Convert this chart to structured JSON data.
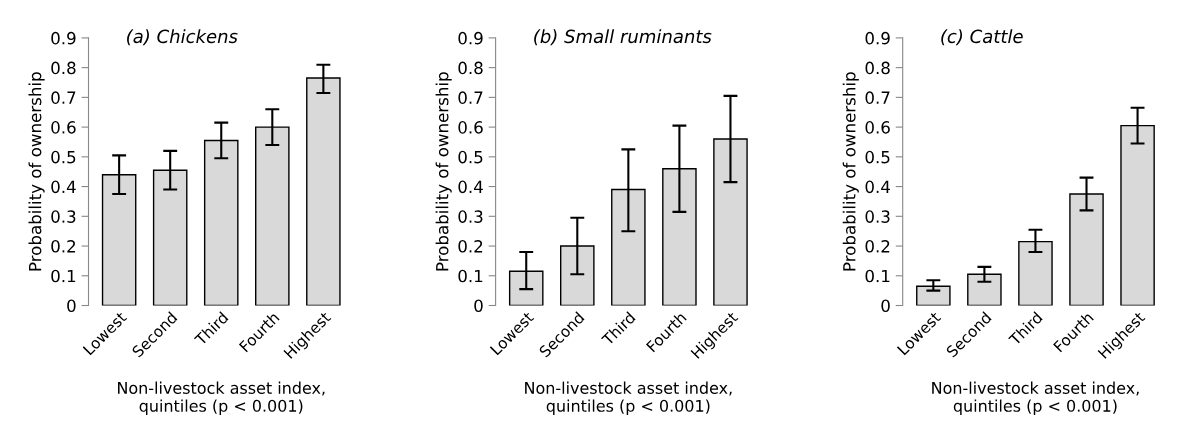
{
  "chart_data": [
    {
      "type": "bar",
      "title": "(a) Chickens",
      "xlabel": "Non-livestock asset index,\nquintiles (p < 0.001)",
      "ylabel": "Probability of ownership",
      "categories": [
        "Lowest",
        "Second",
        "Third",
        "Fourth",
        "Highest"
      ],
      "values": [
        0.44,
        0.455,
        0.555,
        0.6,
        0.765
      ],
      "errors": [
        [
          0.375,
          0.505
        ],
        [
          0.39,
          0.52
        ],
        [
          0.495,
          0.615
        ],
        [
          0.54,
          0.66
        ],
        [
          0.715,
          0.81
        ]
      ],
      "color": "#d9d9d9",
      "ylim": [
        0,
        0.9
      ],
      "yticks": [
        0,
        0.1,
        0.2,
        0.3,
        0.4,
        0.5,
        0.6,
        0.7,
        0.8,
        0.9
      ],
      "grid": false,
      "legend": false
    },
    {
      "type": "bar",
      "title": "(b) Small ruminants",
      "xlabel": "Non-livestock asset index,\nquintiles (p < 0.001)",
      "ylabel": "Probability of ownership",
      "categories": [
        "Lowest",
        "Second",
        "Third",
        "Fourth",
        "Highest"
      ],
      "values": [
        0.115,
        0.2,
        0.39,
        0.46,
        0.56
      ],
      "errors": [
        [
          0.055,
          0.18
        ],
        [
          0.105,
          0.295
        ],
        [
          0.25,
          0.525
        ],
        [
          0.315,
          0.605
        ],
        [
          0.415,
          0.705
        ]
      ],
      "color": "#d9d9d9",
      "ylim": [
        0,
        0.9
      ],
      "yticks": [
        0,
        0.1,
        0.2,
        0.3,
        0.4,
        0.5,
        0.6,
        0.7,
        0.8,
        0.9
      ],
      "grid": false,
      "legend": false
    },
    {
      "type": "bar",
      "title": "(c) Cattle",
      "xlabel": "Non-livestock asset index,\nquintiles (p < 0.001)",
      "ylabel": "Probability of ownership",
      "categories": [
        "Lowest",
        "Second",
        "Third",
        "Fourth",
        "Highest"
      ],
      "values": [
        0.065,
        0.105,
        0.215,
        0.375,
        0.605
      ],
      "errors": [
        [
          0.05,
          0.085
        ],
        [
          0.08,
          0.13
        ],
        [
          0.18,
          0.255
        ],
        [
          0.32,
          0.43
        ],
        [
          0.545,
          0.665
        ]
      ],
      "color": "#d9d9d9",
      "ylim": [
        0,
        0.9
      ],
      "yticks": [
        0,
        0.1,
        0.2,
        0.3,
        0.4,
        0.5,
        0.6,
        0.7,
        0.8,
        0.9
      ],
      "grid": false,
      "legend": false
    }
  ]
}
